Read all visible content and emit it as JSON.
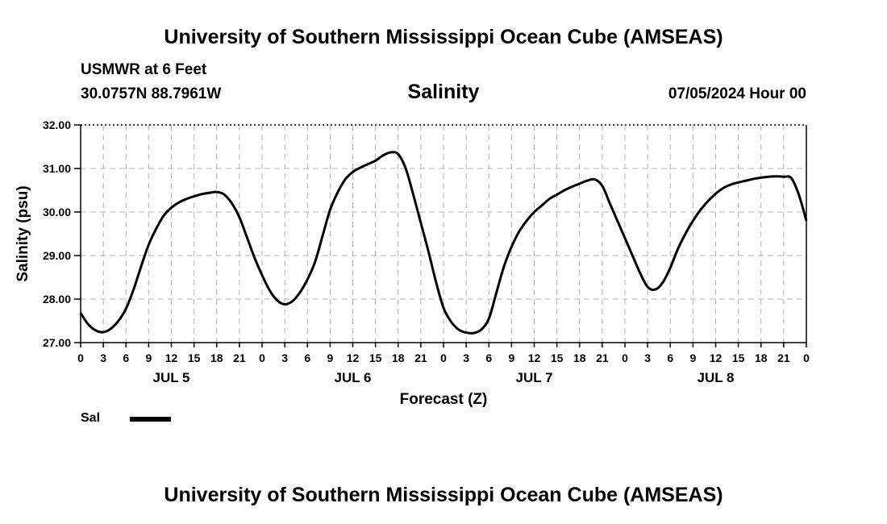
{
  "header": {
    "title": "University of Southern Mississippi Ocean Cube (AMSEAS)",
    "station": "USMWR at 6 Feet",
    "coords": "30.0757N  88.7961W",
    "chart_title": "Salinity",
    "run_time": "07/05/2024 Hour 00"
  },
  "footer": {
    "title": "University of Southern Mississippi Ocean Cube (AMSEAS)"
  },
  "legend": {
    "label": "Sal",
    "color": "#000000"
  },
  "chart_data": {
    "type": "line",
    "title": "Salinity",
    "xlabel": "Forecast (Z)",
    "ylabel": "Salinity (psu)",
    "ylim": [
      27.0,
      32.0
    ],
    "xlim": [
      0,
      96
    ],
    "yticks": [
      "27.00",
      "28.00",
      "29.00",
      "30.00",
      "31.00",
      "32.00"
    ],
    "xtick_labels": [
      "0",
      "3",
      "6",
      "9",
      "12",
      "15",
      "18",
      "21",
      "0",
      "3",
      "6",
      "9",
      "12",
      "15",
      "18",
      "21",
      "0",
      "3",
      "6",
      "9",
      "12",
      "15",
      "18",
      "21",
      "0",
      "3",
      "6",
      "9",
      "12",
      "15",
      "18",
      "21",
      "0"
    ],
    "day_labels": [
      {
        "text": "JUL 5",
        "hour": 12
      },
      {
        "text": "JUL 6",
        "hour": 36
      },
      {
        "text": "JUL 7",
        "hour": 60
      },
      {
        "text": "JUL 8",
        "hour": 84
      }
    ],
    "grid": true,
    "series": [
      {
        "name": "Sal",
        "color": "#000000",
        "x": [
          0,
          1,
          2,
          3,
          4,
          5,
          6,
          7,
          8,
          9,
          10,
          11,
          12,
          13,
          14,
          15,
          16,
          17,
          18,
          19,
          20,
          21,
          22,
          23,
          24,
          25,
          26,
          27,
          28,
          29,
          30,
          31,
          32,
          33,
          34,
          35,
          36,
          37,
          38,
          39,
          40,
          41,
          42,
          43,
          44,
          45,
          46,
          47,
          48,
          49,
          50,
          51,
          52,
          53,
          54,
          55,
          56,
          57,
          58,
          59,
          60,
          61,
          62,
          63,
          64,
          65,
          66,
          67,
          68,
          69,
          70,
          71,
          72,
          73,
          74,
          75,
          76,
          77,
          78,
          79,
          80,
          81,
          82,
          83,
          84,
          85,
          86,
          87,
          88,
          89,
          90,
          91,
          92,
          93,
          94,
          95,
          96
        ],
        "values": [
          27.68,
          27.42,
          27.28,
          27.24,
          27.32,
          27.5,
          27.78,
          28.22,
          28.75,
          29.25,
          29.62,
          29.92,
          30.1,
          30.22,
          30.3,
          30.36,
          30.41,
          30.44,
          30.46,
          30.4,
          30.2,
          29.88,
          29.42,
          28.95,
          28.55,
          28.2,
          27.97,
          27.88,
          27.95,
          28.15,
          28.45,
          28.85,
          29.45,
          30.05,
          30.45,
          30.75,
          30.92,
          31.02,
          31.1,
          31.18,
          31.3,
          31.37,
          31.33,
          31.0,
          30.4,
          29.75,
          29.1,
          28.4,
          27.8,
          27.48,
          27.3,
          27.23,
          27.22,
          27.3,
          27.55,
          28.15,
          28.75,
          29.2,
          29.55,
          29.8,
          30.0,
          30.15,
          30.3,
          30.4,
          30.5,
          30.58,
          30.65,
          30.72,
          30.75,
          30.6,
          30.2,
          29.8,
          29.4,
          29.0,
          28.6,
          28.28,
          28.22,
          28.38,
          28.72,
          29.15,
          29.5,
          29.8,
          30.05,
          30.25,
          30.42,
          30.55,
          30.63,
          30.68,
          30.72,
          30.76,
          30.79,
          30.81,
          30.82,
          30.81,
          30.78,
          30.4,
          29.8
        ]
      }
    ]
  }
}
